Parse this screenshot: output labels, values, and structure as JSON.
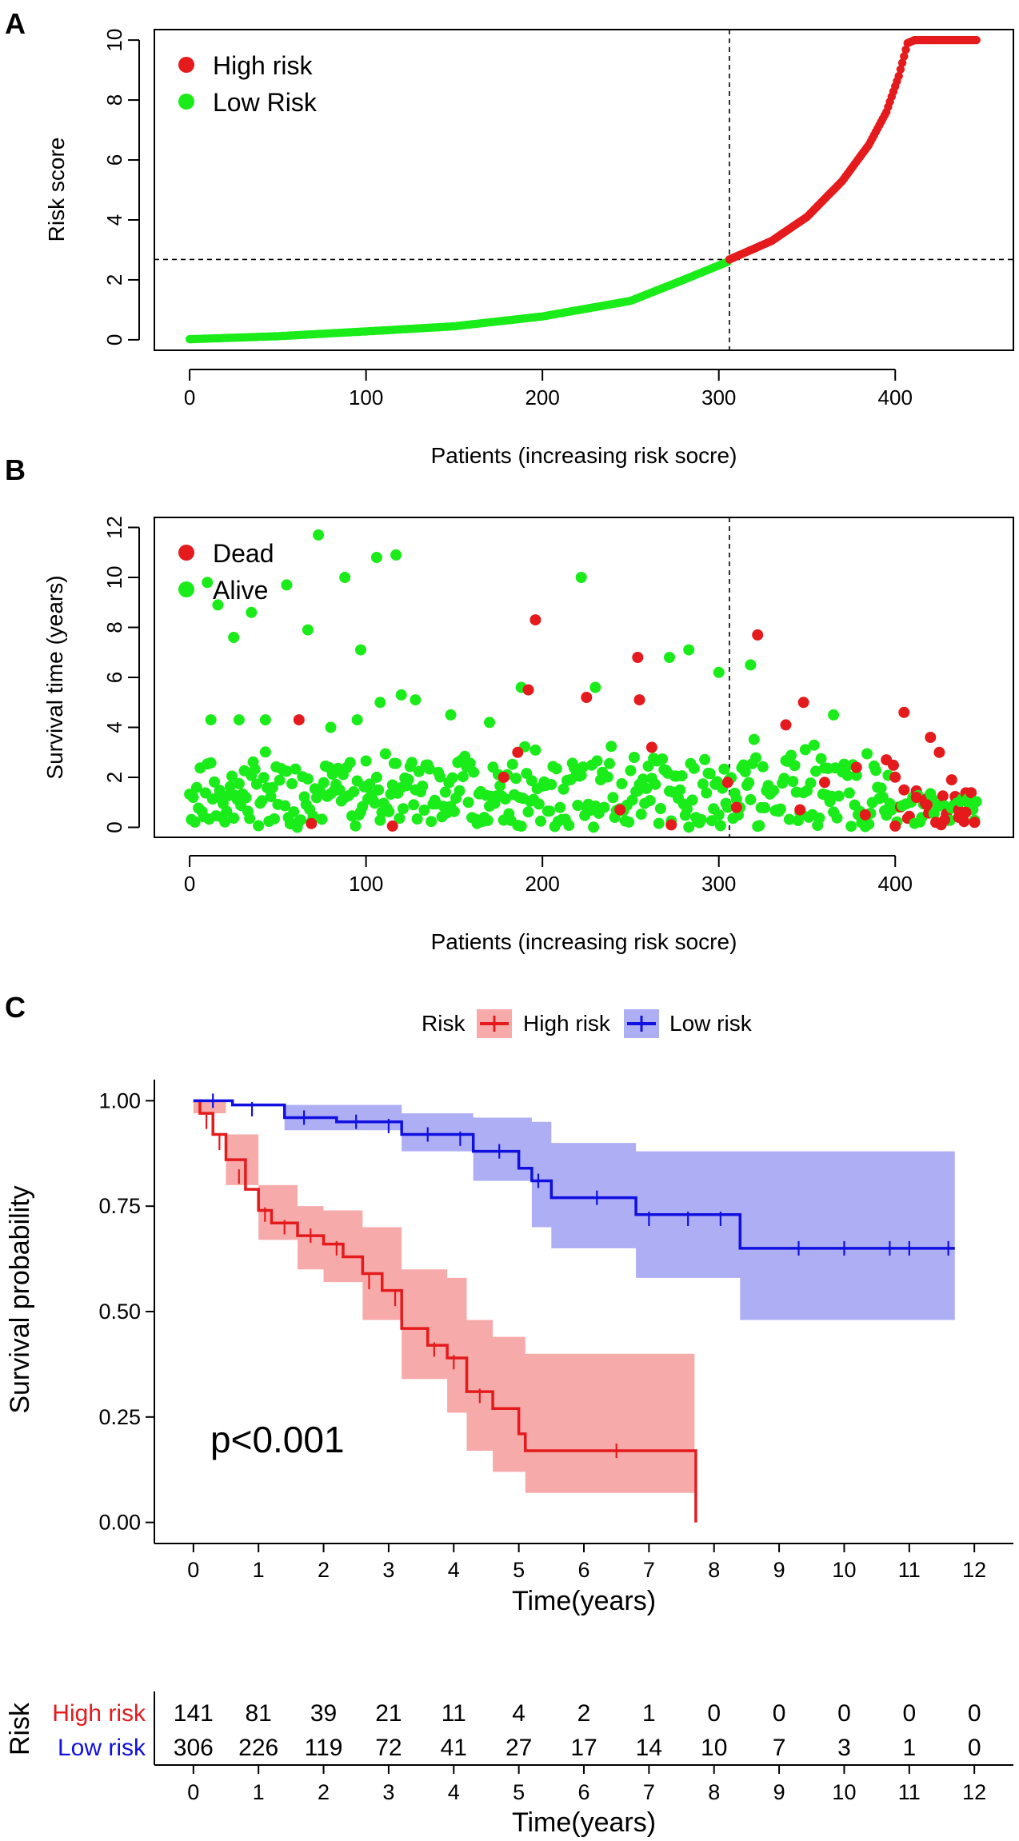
{
  "chart_data": [
    {
      "panel": "A",
      "type": "scatter",
      "xlabel": "Patients (increasing risk socre)",
      "ylabel": "Risk score",
      "xticks": [
        0,
        100,
        200,
        300,
        400
      ],
      "yticks": [
        0,
        2,
        4,
        6,
        8,
        10
      ],
      "xlim": [
        -20,
        467
      ],
      "ylim": [
        -0.35,
        10.35
      ],
      "cutoff_patient": 306,
      "cutoff_score": 2.68,
      "n_patients": 447,
      "legend": [
        {
          "label": "High risk",
          "color": "#e41a1c"
        },
        {
          "label": "Low Risk",
          "color": "#1aec1a"
        }
      ],
      "curve_knots": [
        [
          0,
          0.02
        ],
        [
          50,
          0.12
        ],
        [
          100,
          0.28
        ],
        [
          150,
          0.45
        ],
        [
          200,
          0.78
        ],
        [
          250,
          1.3
        ],
        [
          280,
          2.0
        ],
        [
          305,
          2.6
        ],
        [
          306,
          2.68
        ],
        [
          330,
          3.3
        ],
        [
          350,
          4.1
        ],
        [
          370,
          5.3
        ],
        [
          385,
          6.5
        ],
        [
          395,
          7.6
        ],
        [
          402,
          8.8
        ],
        [
          407,
          9.9
        ],
        [
          411,
          10.0
        ],
        [
          446,
          10.0
        ]
      ]
    },
    {
      "panel": "B",
      "type": "scatter",
      "xlabel": "Patients (increasing risk socre)",
      "ylabel": "Survival time (years)",
      "xticks": [
        0,
        100,
        200,
        300,
        400
      ],
      "yticks": [
        0,
        2,
        4,
        6,
        8,
        10,
        12
      ],
      "xlim": [
        -20,
        467
      ],
      "ylim": [
        -0.4,
        12.4
      ],
      "cutoff_patient": 306,
      "legend": [
        {
          "label": "Dead",
          "color": "#e41a1c"
        },
        {
          "label": "Alive",
          "color": "#1aec1a"
        }
      ],
      "points": [
        [
          10,
          9.8,
          0
        ],
        [
          16,
          8.9,
          0
        ],
        [
          25,
          7.6,
          0
        ],
        [
          35,
          8.6,
          0
        ],
        [
          55,
          9.7,
          0
        ],
        [
          67,
          7.9,
          0
        ],
        [
          73,
          11.7,
          0
        ],
        [
          88,
          10.0,
          0
        ],
        [
          97,
          7.1,
          0
        ],
        [
          106,
          10.8,
          0
        ],
        [
          117,
          10.9,
          0
        ],
        [
          222,
          10.0,
          0
        ],
        [
          12,
          4.3,
          0
        ],
        [
          28,
          4.3,
          0
        ],
        [
          43,
          4.3,
          0
        ],
        [
          62,
          4.3,
          1
        ],
        [
          80,
          4.0,
          0
        ],
        [
          95,
          4.3,
          0
        ],
        [
          108,
          5.0,
          0
        ],
        [
          120,
          5.3,
          0
        ],
        [
          128,
          5.1,
          0
        ],
        [
          148,
          4.5,
          0
        ],
        [
          170,
          4.2,
          0
        ],
        [
          188,
          5.6,
          0
        ],
        [
          192,
          5.5,
          1
        ],
        [
          196,
          8.3,
          1
        ],
        [
          225,
          5.2,
          1
        ],
        [
          230,
          5.6,
          0
        ],
        [
          254,
          6.8,
          1
        ],
        [
          255,
          5.1,
          1
        ],
        [
          272,
          6.8,
          0
        ],
        [
          283,
          7.1,
          0
        ],
        [
          300,
          6.2,
          0
        ],
        [
          322,
          7.7,
          1
        ],
        [
          318,
          6.5,
          0
        ],
        [
          338,
          4.1,
          1
        ],
        [
          348,
          5.0,
          1
        ],
        [
          365,
          4.5,
          0
        ],
        [
          405,
          4.6,
          1
        ],
        [
          420,
          3.6,
          1
        ],
        [
          69,
          0.15,
          1
        ],
        [
          115,
          0.05,
          1
        ],
        [
          178,
          2.0,
          1
        ],
        [
          186,
          3.0,
          1
        ],
        [
          244,
          0.7,
          1
        ],
        [
          262,
          3.2,
          1
        ],
        [
          273,
          0.1,
          1
        ],
        [
          305,
          1.8,
          1
        ],
        [
          310,
          0.8,
          1
        ],
        [
          346,
          0.7,
          1
        ],
        [
          360,
          1.8,
          1
        ],
        [
          383,
          0.5,
          1
        ],
        [
          400,
          0.05,
          1
        ],
        [
          412,
          1.2,
          1
        ],
        [
          428,
          0.3,
          1
        ],
        [
          440,
          0.6,
          1
        ],
        [
          445,
          0.2,
          1
        ],
        [
          432,
          1.9,
          1
        ],
        [
          425,
          3.0,
          1
        ],
        [
          378,
          2.4,
          1
        ],
        [
          395,
          2.7,
          1
        ],
        [
          418,
          0.9,
          1
        ],
        [
          436,
          0.4,
          1
        ]
      ]
    },
    {
      "panel": "C",
      "type": "line",
      "title": "",
      "xlabel": "Time(years)",
      "ylabel": "Survival probability",
      "xticks": [
        0,
        1,
        2,
        3,
        4,
        5,
        6,
        7,
        8,
        9,
        10,
        11,
        12
      ],
      "yticks": [
        "0.00",
        "0.25",
        "0.50",
        "0.75",
        "1.00"
      ],
      "xlim": [
        -0.6,
        12.6
      ],
      "ylim": [
        -0.05,
        1.05
      ],
      "legend_title": "Risk",
      "annotation": "p<0.001",
      "series": [
        {
          "name": "High risk",
          "color": "#e41a1c",
          "band": "#f7aaaa",
          "steps": [
            [
              0,
              1.0
            ],
            [
              0.1,
              0.97
            ],
            [
              0.3,
              0.92
            ],
            [
              0.5,
              0.86
            ],
            [
              0.8,
              0.79
            ],
            [
              1.0,
              0.74
            ],
            [
              1.2,
              0.71
            ],
            [
              1.6,
              0.68
            ],
            [
              2.0,
              0.66
            ],
            [
              2.3,
              0.63
            ],
            [
              2.6,
              0.59
            ],
            [
              2.9,
              0.55
            ],
            [
              3.2,
              0.46
            ],
            [
              3.6,
              0.42
            ],
            [
              3.9,
              0.39
            ],
            [
              4.2,
              0.31
            ],
            [
              4.6,
              0.27
            ],
            [
              5.0,
              0.21
            ],
            [
              5.1,
              0.17
            ],
            [
              7.7,
              0.17
            ],
            [
              7.72,
              0.0
            ]
          ],
          "lower": [
            [
              0,
              0.97
            ],
            [
              0.5,
              0.8
            ],
            [
              1.0,
              0.67
            ],
            [
              1.6,
              0.6
            ],
            [
              2.0,
              0.57
            ],
            [
              2.6,
              0.48
            ],
            [
              3.2,
              0.34
            ],
            [
              3.9,
              0.26
            ],
            [
              4.2,
              0.17
            ],
            [
              4.6,
              0.12
            ],
            [
              5.1,
              0.07
            ],
            [
              7.7,
              0.07
            ]
          ],
          "upper": [
            [
              0,
              1.0
            ],
            [
              0.5,
              0.92
            ],
            [
              1.0,
              0.8
            ],
            [
              1.6,
              0.75
            ],
            [
              2.0,
              0.74
            ],
            [
              2.6,
              0.7
            ],
            [
              3.2,
              0.6
            ],
            [
              3.9,
              0.58
            ],
            [
              4.2,
              0.48
            ],
            [
              4.6,
              0.44
            ],
            [
              5.1,
              0.4
            ],
            [
              7.7,
              0.4
            ]
          ],
          "censors": [
            [
              0.2,
              0.95
            ],
            [
              0.4,
              0.9
            ],
            [
              0.7,
              0.82
            ],
            [
              1.1,
              0.73
            ],
            [
              1.4,
              0.7
            ],
            [
              1.8,
              0.68
            ],
            [
              2.2,
              0.65
            ],
            [
              2.7,
              0.57
            ],
            [
              3.1,
              0.53
            ],
            [
              3.7,
              0.41
            ],
            [
              4.0,
              0.38
            ],
            [
              4.4,
              0.3
            ],
            [
              6.5,
              0.17
            ]
          ]
        },
        {
          "name": "Low risk",
          "color": "#1010e0",
          "band": "#aeaef5",
          "steps": [
            [
              0,
              1.0
            ],
            [
              0.6,
              0.99
            ],
            [
              1.4,
              0.96
            ],
            [
              2.2,
              0.95
            ],
            [
              3.2,
              0.92
            ],
            [
              4.3,
              0.88
            ],
            [
              5.0,
              0.84
            ],
            [
              5.2,
              0.81
            ],
            [
              5.5,
              0.77
            ],
            [
              6.8,
              0.73
            ],
            [
              8.4,
              0.65
            ],
            [
              11.7,
              0.65
            ]
          ],
          "lower": [
            [
              0,
              1.0
            ],
            [
              1.4,
              0.93
            ],
            [
              3.2,
              0.88
            ],
            [
              4.3,
              0.81
            ],
            [
              5.2,
              0.7
            ],
            [
              5.5,
              0.65
            ],
            [
              6.8,
              0.58
            ],
            [
              8.4,
              0.48
            ],
            [
              11.7,
              0.48
            ]
          ],
          "upper": [
            [
              0,
              1.0
            ],
            [
              1.4,
              0.99
            ],
            [
              3.2,
              0.97
            ],
            [
              4.3,
              0.96
            ],
            [
              5.2,
              0.95
            ],
            [
              5.5,
              0.9
            ],
            [
              6.8,
              0.88
            ],
            [
              8.4,
              0.88
            ],
            [
              11.7,
              0.88
            ]
          ],
          "censors": [
            [
              0.3,
              1.0
            ],
            [
              0.9,
              0.98
            ],
            [
              1.7,
              0.96
            ],
            [
              2.5,
              0.95
            ],
            [
              3.0,
              0.94
            ],
            [
              3.6,
              0.92
            ],
            [
              4.1,
              0.91
            ],
            [
              4.7,
              0.88
            ],
            [
              5.3,
              0.81
            ],
            [
              6.2,
              0.77
            ],
            [
              7.0,
              0.72
            ],
            [
              7.6,
              0.72
            ],
            [
              8.1,
              0.72
            ],
            [
              9.3,
              0.65
            ],
            [
              10.0,
              0.65
            ],
            [
              10.7,
              0.65
            ],
            [
              11.0,
              0.65
            ],
            [
              11.6,
              0.65
            ]
          ]
        }
      ]
    },
    {
      "panel": "C-table",
      "type": "table",
      "title": "Risk",
      "xlabel": "Time(years)",
      "time_labels": [
        "0",
        "1",
        "2",
        "3",
        "4",
        "5",
        "6",
        "7",
        "8",
        "9",
        "10",
        "11",
        "12"
      ],
      "rows": [
        {
          "label": "High risk",
          "color": "#e41a1c",
          "counts": [
            "141",
            "81",
            "39",
            "21",
            "11",
            "4",
            "2",
            "1",
            "0",
            "0",
            "0",
            "0",
            "0"
          ]
        },
        {
          "label": "Low risk",
          "color": "#1010e0",
          "counts": [
            "306",
            "226",
            "119",
            "72",
            "41",
            "27",
            "17",
            "14",
            "10",
            "7",
            "3",
            "1",
            "0"
          ]
        }
      ]
    }
  ],
  "panel_labels": [
    "A",
    "B",
    "C"
  ]
}
